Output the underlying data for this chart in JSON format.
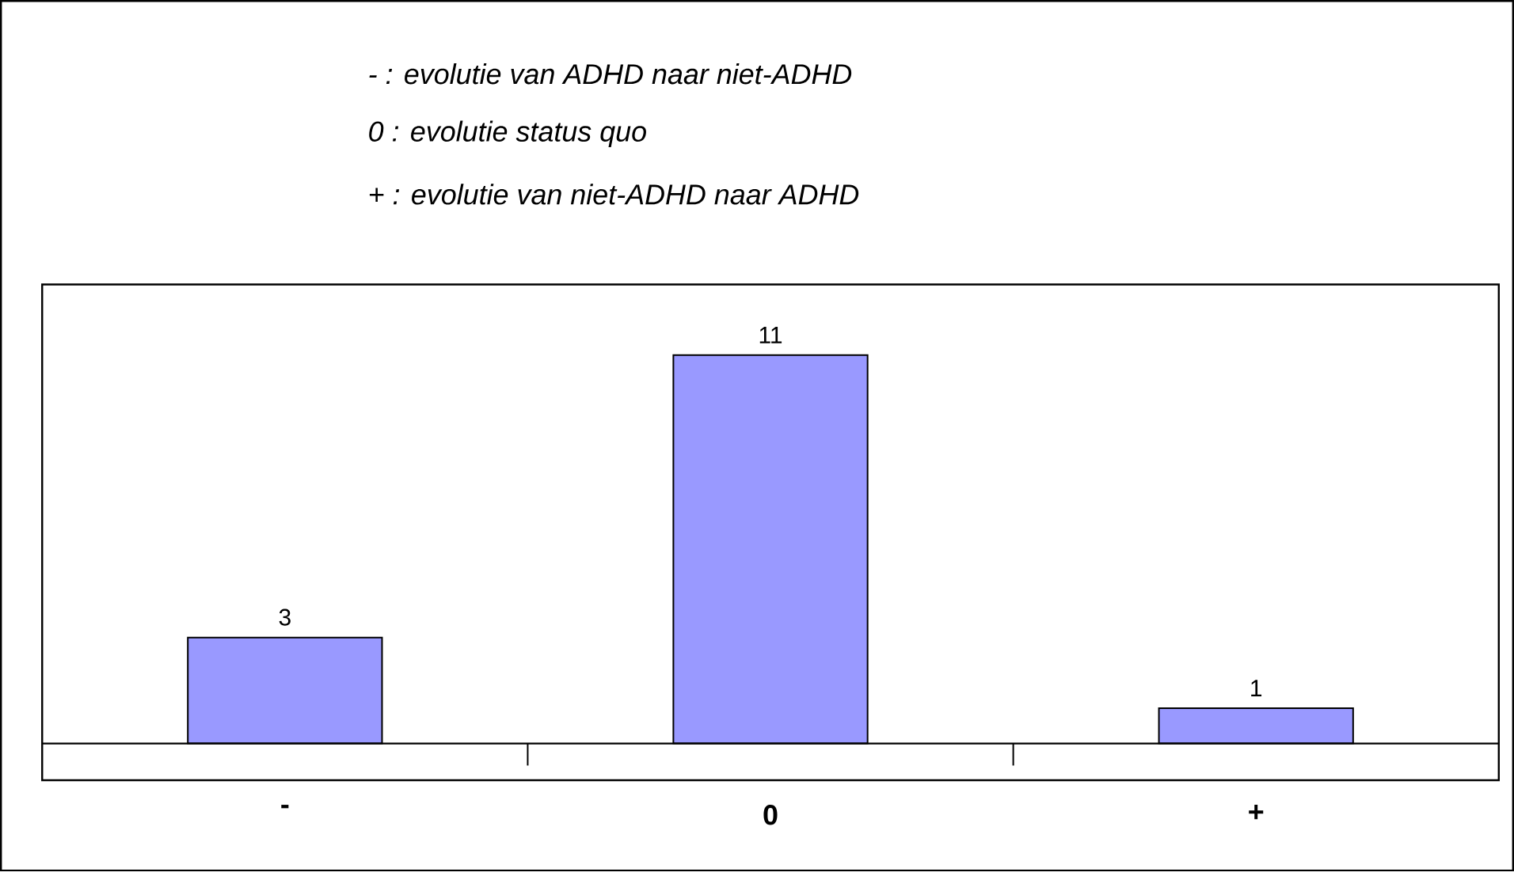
{
  "chart_data": {
    "type": "bar",
    "annotations": [
      "- : evolutie van ADHD naar niet-ADHD",
      "0 : evolutie status quo",
      "+ : evolutie van niet-ADHD naar ADHD"
    ],
    "categories": [
      "-",
      "0",
      "+"
    ],
    "values": [
      3,
      11,
      1
    ],
    "color": "#9999ff",
    "data_labels": true,
    "tick_labels": "x"
  }
}
